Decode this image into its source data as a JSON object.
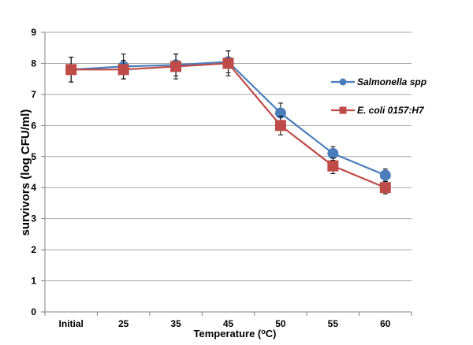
{
  "chart_data": {
    "type": "line",
    "categories": [
      "Initial",
      "25",
      "35",
      "45",
      "50",
      "55",
      "60"
    ],
    "ylim": [
      0,
      9
    ],
    "yticks": [
      0,
      1,
      2,
      3,
      4,
      5,
      6,
      7,
      8,
      9
    ],
    "grid": true,
    "legend_position": "right",
    "xlabel_parts": {
      "before": "Temperature (",
      "super": "o",
      "after": "C)"
    },
    "ylabel": "survivors (log CFU/ml)",
    "series": [
      {
        "name": "Salmonella spp",
        "color": "#4a7ebb",
        "marker": "circle",
        "values": [
          7.8,
          7.9,
          7.95,
          8.05,
          6.4,
          5.1,
          4.4
        ],
        "errors": [
          0.4,
          0.4,
          0.35,
          0.35,
          0.32,
          0.22,
          0.2
        ]
      },
      {
        "name": "E. coli 0157:H7",
        "color": "#be4b48",
        "marker": "square",
        "values": [
          7.8,
          7.8,
          7.9,
          8.0,
          6.0,
          4.7,
          4.0
        ],
        "errors": [
          0.4,
          0.3,
          0.4,
          0.4,
          0.3,
          0.25,
          0.2
        ]
      }
    ]
  }
}
